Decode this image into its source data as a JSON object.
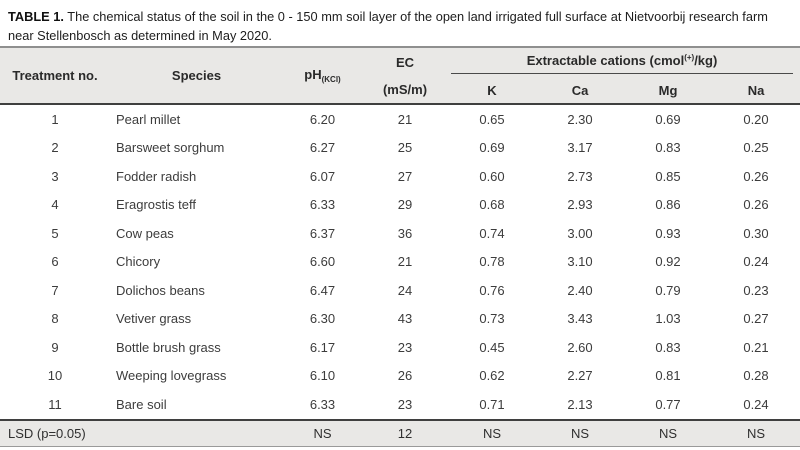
{
  "colors": {
    "header_bg": "#e9e8e6",
    "footer_bg": "#e9e8e6",
    "body_text": "#3c3c3c",
    "rule_dark": "#3f3f3f",
    "rule_light": "#9a9a9a",
    "rule_top": "#8f8f8f"
  },
  "caption": {
    "label": "TABLE 1.",
    "text": "The chemical status of the soil in the 0 - 150 mm soil layer of the open land irrigated full surface at Nietvoorbij research farm near Stellenbosch as determined in May 2020."
  },
  "table": {
    "columns": {
      "treatment": "Treatment no.",
      "species": "Species",
      "ph_main": "pH",
      "ph_subscript": "(KCl)",
      "ec_line1": "EC",
      "ec_line2": "(mS/m)",
      "cations_group_main": "Extractable cations (cmol",
      "cations_group_superscript": "(+)",
      "cations_group_end": "/kg)",
      "k": "K",
      "ca": "Ca",
      "mg": "Mg",
      "na": "Na"
    },
    "rows": [
      [
        "1",
        "Pearl millet",
        "6.20",
        "21",
        "0.65",
        "2.30",
        "0.69",
        "0.20"
      ],
      [
        "2",
        "Barsweet sorghum",
        "6.27",
        "25",
        "0.69",
        "3.17",
        "0.83",
        "0.25"
      ],
      [
        "3",
        "Fodder radish",
        "6.07",
        "27",
        "0.60",
        "2.73",
        "0.85",
        "0.26"
      ],
      [
        "4",
        "Eragrostis teff",
        "6.33",
        "29",
        "0.68",
        "2.93",
        "0.86",
        "0.26"
      ],
      [
        "5",
        "Cow peas",
        "6.37",
        "36",
        "0.74",
        "3.00",
        "0.93",
        "0.30"
      ],
      [
        "6",
        "Chicory",
        "6.60",
        "21",
        "0.78",
        "3.10",
        "0.92",
        "0.24"
      ],
      [
        "7",
        "Dolichos beans",
        "6.47",
        "24",
        "0.76",
        "2.40",
        "0.79",
        "0.23"
      ],
      [
        "8",
        "Vetiver grass",
        "6.30",
        "43",
        "0.73",
        "3.43",
        "1.03",
        "0.27"
      ],
      [
        "9",
        "Bottle brush grass",
        "6.17",
        "23",
        "0.45",
        "2.60",
        "0.83",
        "0.21"
      ],
      [
        "10",
        "Weeping lovegrass",
        "6.10",
        "26",
        "0.62",
        "2.27",
        "0.81",
        "0.28"
      ],
      [
        "11",
        "Bare soil",
        "6.33",
        "23",
        "0.71",
        "2.13",
        "0.77",
        "0.24"
      ]
    ],
    "footer": {
      "label": "LSD (p=0.05)",
      "values": [
        "NS",
        "12",
        "NS",
        "NS",
        "NS",
        "NS"
      ]
    }
  }
}
